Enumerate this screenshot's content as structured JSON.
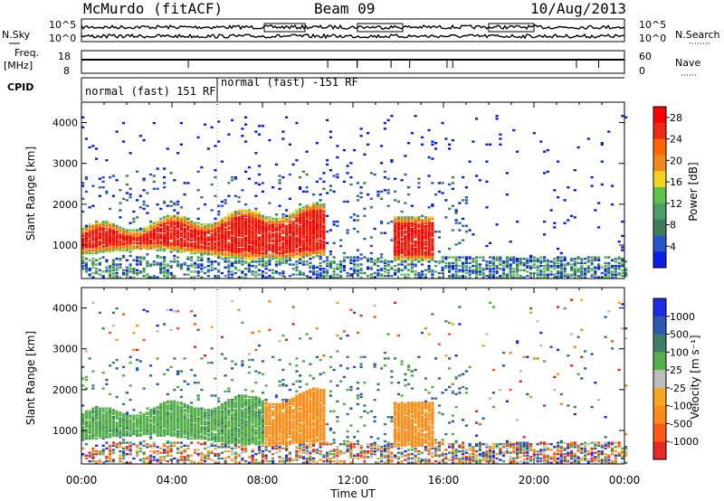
{
  "header": {
    "station": "McMurdo (fitACF)",
    "beam": "Beam 09",
    "date": "10/Aug/2013"
  },
  "left_labels": {
    "nsky": "N.Sky",
    "freq": "Freq.",
    "freq_unit": "[MHz]",
    "cpid": "CPID"
  },
  "right_labels": {
    "nsearch": "N.Search",
    "nave": "Nave"
  },
  "noise_axis": {
    "top": "10^5",
    "bottom": "10^0"
  },
  "freq_axis": {
    "top": "18",
    "bottom": "8"
  },
  "nave_axis": {
    "top": "60",
    "bottom": "0"
  },
  "cpid_segments": [
    {
      "label": "normal (fast) 151 RF",
      "from_hour": 0,
      "to_hour": 6.0
    },
    {
      "label": "normal (fast) -151 RF",
      "from_hour": 6.0,
      "to_hour": 24
    }
  ],
  "time_axis": {
    "label": "Time UT",
    "ticks": [
      "00:00",
      "04:00",
      "08:00",
      "12:00",
      "16:00",
      "20:00",
      "00:00"
    ]
  },
  "range_axis": {
    "label": "Slant Range [km]",
    "ticks": [
      "1000",
      "2000",
      "3000",
      "4000"
    ]
  },
  "colors": {
    "power": [
      "#0a1ee6",
      "#2855c8",
      "#3f7d5a",
      "#4c9e66",
      "#5cc24a",
      "#f2d21e",
      "#f08a1e",
      "#ff6600",
      "#ee2a10",
      "#ff0000"
    ],
    "velocity": [
      "#1e2de0",
      "#2e59b0",
      "#3f7f6a",
      "#56b14a",
      "#bdbdbd",
      "#f5a623",
      "#ff8c1a",
      "#ff5a14",
      "#e62828"
    ]
  },
  "chart_data": [
    {
      "type": "heatmap",
      "title": "",
      "xlabel": "Time UT",
      "ylabel": "Slant Range [km]",
      "xlim": [
        0,
        24
      ],
      "ylim": [
        180,
        4500
      ],
      "colorbar": {
        "label": "Power [dB]",
        "ticks": [
          "4",
          "8",
          "12",
          "16",
          "20",
          "24",
          "28"
        ],
        "range": [
          0,
          30
        ]
      },
      "features": [
        {
          "name": "main echo band",
          "hours": [
            0,
            10.8
          ],
          "range_km": [
            700,
            2100
          ],
          "power_db": 26
        },
        {
          "name": "second echo patch",
          "hours": [
            13.8,
            15.6
          ],
          "range_km": [
            500,
            1900
          ],
          "power_db": 27
        },
        {
          "name": "near-range ground scatter",
          "hours": [
            0,
            24
          ],
          "range_km": [
            200,
            700
          ],
          "power_db": 10
        }
      ]
    },
    {
      "type": "heatmap",
      "title": "",
      "xlabel": "Time UT",
      "ylabel": "Slant Range [km]",
      "xlim": [
        0,
        24
      ],
      "ylim": [
        180,
        4500
      ],
      "colorbar": {
        "label": "Velocity [m s⁻¹]",
        "ticks": [
          "1000",
          "500",
          "100",
          "25",
          "-25",
          "-100",
          "-500",
          "-1000"
        ],
        "range": [
          -1000,
          1000
        ]
      },
      "features": [
        {
          "name": "toward band",
          "hours": [
            0,
            8.0
          ],
          "range_km": [
            500,
            2100
          ],
          "velocity": 150
        },
        {
          "name": "away band",
          "hours": [
            8.0,
            15.6
          ],
          "range_km": [
            500,
            2000
          ],
          "velocity": -200
        }
      ]
    }
  ]
}
